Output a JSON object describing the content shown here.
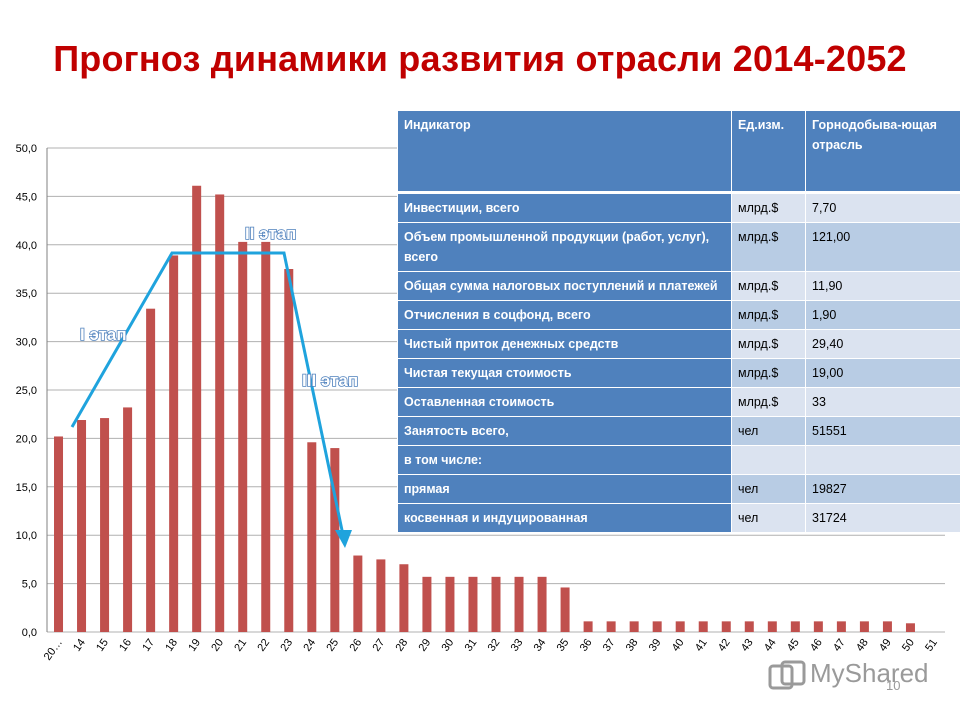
{
  "slide": {
    "title": "Прогноз динамики развития отрасли 2014-2052",
    "page_number": "10",
    "watermark": "MyShared"
  },
  "chart_data": {
    "type": "bar",
    "title": "",
    "xlabel": "",
    "ylabel": "",
    "ylim": [
      0,
      50
    ],
    "ytick_step": 5,
    "ytick_labels": [
      "0,0",
      "5,0",
      "10,0",
      "15,0",
      "20,0",
      "25,0",
      "30,0",
      "35,0",
      "40,0",
      "45,0",
      "50,0"
    ],
    "grid": true,
    "bar_color": "#c0504d",
    "categories": [
      "20…",
      "14",
      "15",
      "16",
      "17",
      "18",
      "19",
      "20",
      "21",
      "22",
      "23",
      "24",
      "25",
      "26",
      "27",
      "28",
      "29",
      "30",
      "31",
      "32",
      "33",
      "34",
      "35",
      "36",
      "37",
      "38",
      "39",
      "40",
      "41",
      "42",
      "43",
      "44",
      "45",
      "46",
      "47",
      "48",
      "49",
      "50",
      "51"
    ],
    "values": [
      20.2,
      21.9,
      22.1,
      23.2,
      33.4,
      38.9,
      46.1,
      45.2,
      40.3,
      40.3,
      37.5,
      19.6,
      19.0,
      7.9,
      7.5,
      7.0,
      5.7,
      5.7,
      5.7,
      5.7,
      5.7,
      5.7,
      4.6,
      1.1,
      1.1,
      1.1,
      1.1,
      1.1,
      1.1,
      1.1,
      1.1,
      1.1,
      1.1,
      1.1,
      1.1,
      1.1,
      1.1,
      0.9,
      0
    ],
    "annotations": [
      "I этап",
      "II этап",
      "III этап"
    ],
    "arrow_color": "#1fa3dd",
    "label_color": "#4f81bd"
  },
  "table": {
    "headers": [
      "Индикатор",
      "Ед.изм.",
      "Горнодобыва-ющая отрасль"
    ],
    "rows": [
      [
        "Инвестиции, всего",
        "млрд.$",
        "7,70"
      ],
      [
        "Объем промышленной продукции (работ, услуг), всего",
        "млрд.$",
        "121,00"
      ],
      [
        "Общая сумма налоговых поступлений и платежей",
        "млрд.$",
        "11,90"
      ],
      [
        "Отчисления в соцфонд, всего",
        "млрд.$",
        "1,90"
      ],
      [
        "Чистый приток денежных средств",
        "млрд.$",
        "29,40"
      ],
      [
        "Чистая текущая стоимость",
        "млрд.$",
        "19,00"
      ],
      [
        "Оставленная стоимость",
        "млрд.$",
        "33"
      ],
      [
        "Занятость всего,",
        "чел",
        "51551"
      ],
      [
        "в том числе:",
        "",
        ""
      ],
      [
        "прямая",
        "чел",
        "19827"
      ],
      [
        "косвенная и индуцированная",
        "чел",
        "31724"
      ]
    ]
  }
}
